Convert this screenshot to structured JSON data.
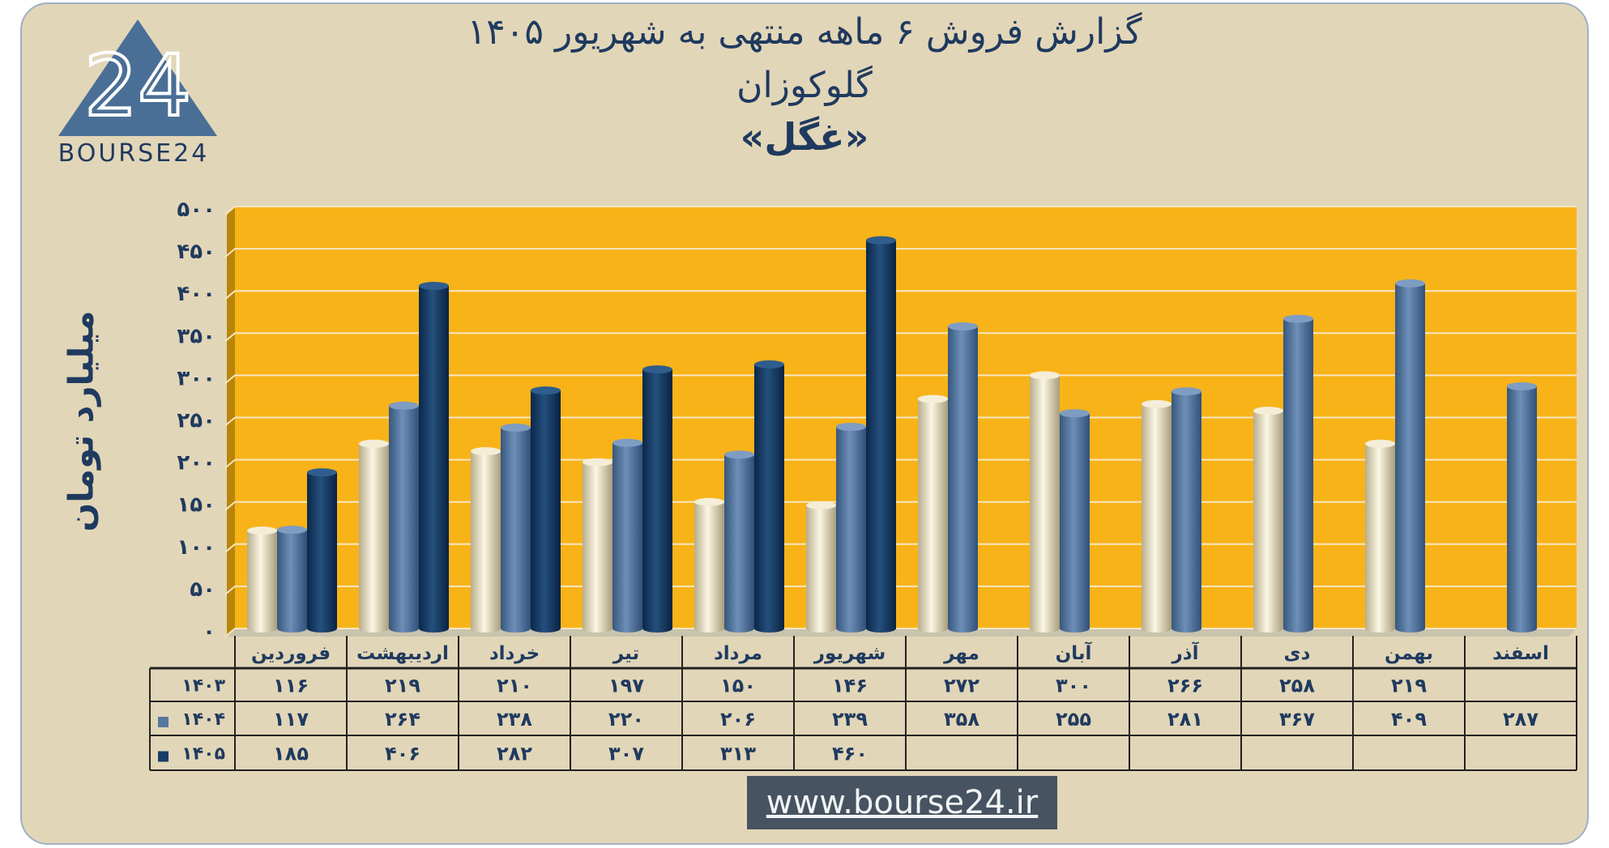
{
  "title": {
    "line1": "گزارش  فروش ۶ ماهه منتهی به شهریور ۱۴۰۵",
    "line2": "گلوکوزان",
    "line3": "«غگل»"
  },
  "logo": {
    "icon": "bourse24-triangle-logo",
    "mark": "24",
    "text": "BOURSE24",
    "color": "#4a6f96"
  },
  "website": "www.bourse24.ir",
  "colors": {
    "plot_bg": "#f8b318",
    "frame_bg": "#e2d6b8",
    "series_1403": "#eee6c6",
    "series_1404": "#55779f",
    "series_1405": "#163d68",
    "text": "#1f3a5f"
  },
  "chart_data": {
    "type": "bar",
    "ylabel": "میلیارد تومان",
    "ylim": [
      0,
      500
    ],
    "yticks": [
      {
        "value": 0,
        "label": "۰"
      },
      {
        "value": 50,
        "label": "۵۰"
      },
      {
        "value": 100,
        "label": "۱۰۰"
      },
      {
        "value": 150,
        "label": "۱۵۰"
      },
      {
        "value": 200,
        "label": "۲۰۰"
      },
      {
        "value": 250,
        "label": "۲۵۰"
      },
      {
        "value": 300,
        "label": "۳۰۰"
      },
      {
        "value": 350,
        "label": "۳۵۰"
      },
      {
        "value": 400,
        "label": "۴۰۰"
      },
      {
        "value": 450,
        "label": "۴۵۰"
      },
      {
        "value": 500,
        "label": "۵۰۰"
      }
    ],
    "grid": true,
    "legend": "table-left",
    "categories": [
      "فروردین",
      "اردیبهشت",
      "خرداد",
      "تیر",
      "مرداد",
      "شهریور",
      "مهر",
      "آبان",
      "آذر",
      "دی",
      "بهمن",
      "اسفند"
    ],
    "series": [
      {
        "name": "۱۴۰۳",
        "values": [
          116,
          219,
          210,
          197,
          150,
          146,
          272,
          300,
          266,
          258,
          219,
          null
        ],
        "labels": [
          "۱۱۶",
          "۲۱۹",
          "۲۱۰",
          "۱۹۷",
          "۱۵۰",
          "۱۴۶",
          "۲۷۲",
          "۳۰۰",
          "۲۶۶",
          "۲۵۸",
          "۲۱۹",
          ""
        ]
      },
      {
        "name": "۱۴۰۴",
        "values": [
          117,
          264,
          238,
          220,
          206,
          239,
          358,
          255,
          281,
          367,
          409,
          287
        ],
        "labels": [
          "۱۱۷",
          "۲۶۴",
          "۲۳۸",
          "۲۲۰",
          "۲۰۶",
          "۲۳۹",
          "۳۵۸",
          "۲۵۵",
          "۲۸۱",
          "۳۶۷",
          "۴۰۹",
          "۲۸۷"
        ]
      },
      {
        "name": "۱۴۰۵",
        "values": [
          185,
          406,
          282,
          307,
          313,
          460,
          null,
          null,
          null,
          null,
          null,
          null
        ],
        "labels": [
          "۱۸۵",
          "۴۰۶",
          "۲۸۲",
          "۳۰۷",
          "۳۱۳",
          "۴۶۰",
          "",
          "",
          "",
          "",
          "",
          ""
        ]
      }
    ]
  }
}
